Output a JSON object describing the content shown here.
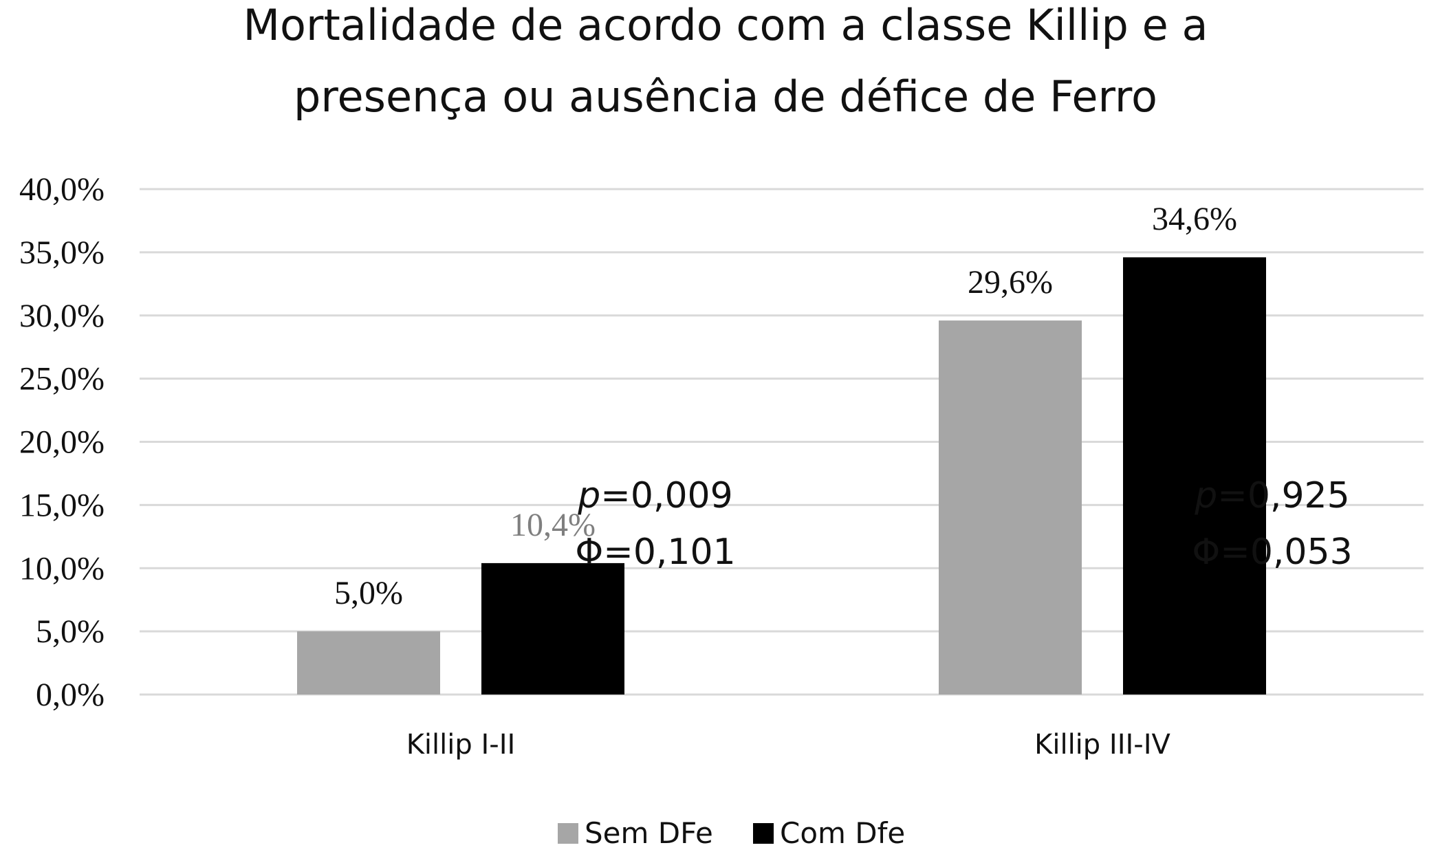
{
  "chart_data": {
    "type": "bar",
    "title_lines": [
      "Mortalidade de acordo com a classe Killip e a",
      "presença ou ausência de défice de Ferro"
    ],
    "categories": [
      "Killip I-II",
      "Killip III-IV"
    ],
    "series": [
      {
        "name": "Sem DFe",
        "color": "#a6a6a6",
        "values": [
          5.0,
          29.6
        ],
        "labels": [
          "5,0%",
          "29,6%"
        ]
      },
      {
        "name": "Com Dfe",
        "color": "#000000",
        "values": [
          10.4,
          34.6
        ],
        "labels": [
          "10,4%",
          "34,6%"
        ]
      }
    ],
    "ylim": [
      0,
      40
    ],
    "yticks": [
      0,
      5,
      10,
      15,
      20,
      25,
      30,
      35,
      40
    ],
    "ytick_labels": [
      "0,0%",
      "5,0%",
      "10,0%",
      "15,0%",
      "20,0%",
      "25,0%",
      "30,0%",
      "35,0%",
      "40,0%"
    ],
    "grid": true,
    "legend": "bottom-center",
    "annotations": [
      {
        "category": "Killip I-II",
        "p": "=0,009",
        "phi": "Φ=0,101"
      },
      {
        "category": "Killip III-IV",
        "p": "=0,925",
        "phi": "Φ=0,053"
      }
    ],
    "p_symbol": "p"
  }
}
